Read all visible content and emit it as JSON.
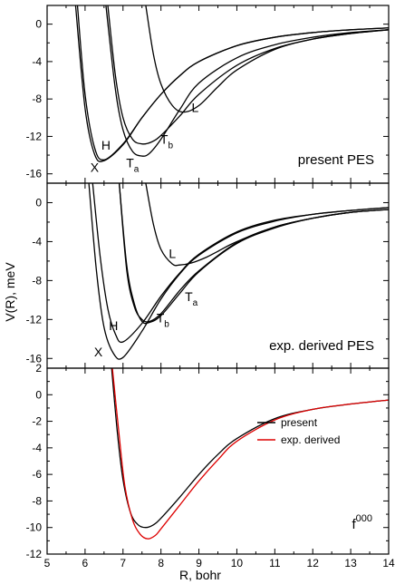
{
  "chart_data": [
    {
      "type": "line",
      "panel": "top",
      "label": "present PES",
      "ylabel": "V(R), meV",
      "xlabel": "R, bohr",
      "xlim": [
        5,
        14
      ],
      "ylim": [
        -17,
        2
      ],
      "yticks": [
        0,
        -4,
        -8,
        -12,
        -16
      ],
      "yticklabels": [
        "0",
        "-4",
        "-8",
        "-12",
        "-16"
      ],
      "series": [
        {
          "name": "X",
          "x": [
            5.75,
            6.0,
            6.25,
            6.5,
            7.0,
            7.5,
            8.0,
            8.5,
            9.0,
            10.0,
            11.0,
            12.0,
            13.0,
            14.0
          ],
          "y": [
            2.0,
            -9.0,
            -13.9,
            -14.6,
            -12.9,
            -10.0,
            -7.5,
            -5.5,
            -4.0,
            -2.3,
            -1.4,
            -0.9,
            -0.6,
            -0.4
          ]
        },
        {
          "name": "H",
          "x": [
            5.8,
            6.0,
            6.25,
            6.5,
            7.0,
            7.5,
            8.0,
            8.5,
            9.0,
            10.0,
            11.0,
            12.0,
            13.0,
            14.0
          ],
          "y": [
            2.0,
            -7.5,
            -13.2,
            -14.5,
            -12.8,
            -10.0,
            -7.5,
            -5.5,
            -4.0,
            -2.3,
            -1.4,
            -0.9,
            -0.6,
            -0.4
          ]
        },
        {
          "name": "T_a",
          "x": [
            6.55,
            6.8,
            7.0,
            7.25,
            7.5,
            7.7,
            8.0,
            8.5,
            9.0,
            10.0,
            11.0,
            12.0,
            13.0,
            14.0
          ],
          "y": [
            2.0,
            -7.0,
            -11.3,
            -13.6,
            -14.1,
            -13.8,
            -12.3,
            -9.1,
            -6.3,
            -3.6,
            -2.2,
            -1.4,
            -0.9,
            -0.6
          ]
        },
        {
          "name": "T_b",
          "x": [
            6.6,
            6.8,
            7.0,
            7.25,
            7.5,
            7.75,
            8.0,
            8.5,
            9.0,
            10.0,
            11.0,
            12.0,
            13.0,
            14.0
          ],
          "y": [
            2.0,
            -5.5,
            -10.0,
            -12.3,
            -12.8,
            -12.6,
            -11.9,
            -9.8,
            -7.5,
            -4.4,
            -2.6,
            -1.6,
            -1.0,
            -0.6
          ]
        },
        {
          "name": "L",
          "x": [
            7.6,
            7.8,
            8.0,
            8.3,
            8.6,
            9.0,
            9.5,
            10.0,
            11.0,
            12.0,
            13.0,
            14.0
          ],
          "y": [
            2.0,
            -3.2,
            -6.4,
            -8.7,
            -9.4,
            -8.7,
            -6.7,
            -4.9,
            -2.7,
            -1.6,
            -1.0,
            -0.6
          ]
        }
      ],
      "annotations": [
        {
          "text": "X",
          "x": 6.25,
          "y": -15.8
        },
        {
          "text": "H",
          "x": 6.55,
          "y": -13.4
        },
        {
          "text": "T",
          "sub": "a",
          "x": 7.25,
          "y": -15.3
        },
        {
          "text": "T",
          "sub": "b",
          "x": 8.15,
          "y": -12.8
        },
        {
          "text": "L",
          "x": 8.9,
          "y": -9.4
        }
      ]
    },
    {
      "type": "line",
      "panel": "middle",
      "label": "exp. derived PES",
      "ylabel": "",
      "xlabel": "R, bohr",
      "xlim": [
        5,
        14
      ],
      "ylim": [
        -17,
        2
      ],
      "yticks": [
        0,
        -4,
        -8,
        -12,
        -16
      ],
      "yticklabels": [
        "0",
        "-4",
        "-8",
        "-12",
        "-16"
      ],
      "series": [
        {
          "name": "X",
          "x": [
            6.1,
            6.3,
            6.5,
            6.75,
            7.0,
            7.5,
            8.0,
            8.5,
            9.0,
            10.0,
            11.0,
            12.0,
            13.0,
            14.0
          ],
          "y": [
            2.0,
            -7.0,
            -12.8,
            -15.5,
            -15.9,
            -13.2,
            -9.9,
            -7.3,
            -5.4,
            -3.1,
            -1.9,
            -1.2,
            -0.8,
            -0.5
          ]
        },
        {
          "name": "H",
          "x": [
            6.2,
            6.4,
            6.6,
            6.8,
            7.0,
            7.5,
            8.0,
            8.5,
            9.0,
            10.0,
            11.0,
            12.0,
            13.0,
            14.0
          ],
          "y": [
            2.0,
            -5.6,
            -10.9,
            -13.5,
            -14.3,
            -12.4,
            -9.6,
            -7.2,
            -5.3,
            -3.0,
            -1.8,
            -1.2,
            -0.8,
            -0.5
          ]
        },
        {
          "name": "T_a",
          "x": [
            6.9,
            7.1,
            7.3,
            7.5,
            7.7,
            8.0,
            8.5,
            9.0,
            10.0,
            11.0,
            12.0,
            13.0,
            14.0
          ],
          "y": [
            2.0,
            -7.0,
            -10.7,
            -12.0,
            -12.2,
            -11.4,
            -9.0,
            -7.0,
            -4.1,
            -2.5,
            -1.6,
            -1.0,
            -0.7
          ]
        },
        {
          "name": "T_b",
          "x": [
            6.9,
            7.1,
            7.3,
            7.5,
            7.7,
            8.0,
            8.5,
            9.0,
            10.0,
            11.0,
            12.0,
            13.0,
            14.0
          ],
          "y": [
            2.0,
            -6.5,
            -10.4,
            -12.2,
            -12.3,
            -11.6,
            -9.3,
            -7.1,
            -4.2,
            -2.6,
            -1.6,
            -1.0,
            -0.7
          ]
        },
        {
          "name": "L",
          "x": [
            7.6,
            7.8,
            8.0,
            8.3,
            8.5,
            8.8,
            9.2,
            9.5,
            10.0,
            11.0,
            12.0,
            13.0,
            14.0
          ],
          "y": [
            2.0,
            -2.2,
            -4.8,
            -6.3,
            -6.4,
            -6.2,
            -5.6,
            -5.0,
            -4.0,
            -2.5,
            -1.6,
            -1.0,
            -0.7
          ]
        }
      ],
      "annotations": [
        {
          "text": "X",
          "x": 6.35,
          "y": -15.8
        },
        {
          "text": "H",
          "x": 6.75,
          "y": -13.1
        },
        {
          "text": "T",
          "sub": "a",
          "x": 8.8,
          "y": -10.1
        },
        {
          "text": "T",
          "sub": "b",
          "x": 8.05,
          "y": -12.3
        },
        {
          "text": "L",
          "x": 8.3,
          "y": -5.7
        }
      ]
    },
    {
      "type": "line",
      "panel": "bottom",
      "label": "f",
      "label_sup": "000",
      "ylabel": "",
      "xlabel": "R, bohr",
      "xlim": [
        5,
        14
      ],
      "ylim": [
        -12,
        2
      ],
      "yticks": [
        2,
        0,
        -2,
        -4,
        -6,
        -8,
        -10,
        -12
      ],
      "yticklabels": [
        "2",
        "0",
        "-2",
        "-4",
        "-6",
        "-8",
        "-10",
        "-12"
      ],
      "legend": "right",
      "series": [
        {
          "name": "present",
          "x": [
            6.7,
            6.85,
            7.0,
            7.2,
            7.4,
            7.6,
            7.8,
            8.0,
            8.5,
            9.0,
            9.5,
            10.0,
            11.0,
            12.0,
            13.0,
            14.0
          ],
          "y": [
            2.0,
            -2.8,
            -6.4,
            -8.9,
            -9.8,
            -10.0,
            -9.8,
            -9.3,
            -7.7,
            -6.0,
            -4.5,
            -3.3,
            -1.8,
            -1.1,
            -0.7,
            -0.4
          ]
        },
        {
          "name": "exp. derived",
          "x": [
            6.72,
            6.9,
            7.05,
            7.25,
            7.45,
            7.65,
            7.85,
            8.0,
            8.5,
            9.0,
            9.5,
            10.0,
            11.0,
            12.0,
            13.0,
            14.0
          ],
          "y": [
            2.0,
            -3.1,
            -6.9,
            -9.4,
            -10.5,
            -10.85,
            -10.6,
            -10.1,
            -8.3,
            -6.5,
            -4.9,
            -3.5,
            -1.9,
            -1.1,
            -0.7,
            -0.4
          ]
        }
      ]
    }
  ],
  "x_ticks": [
    5,
    6,
    7,
    8,
    9,
    10,
    11,
    12,
    13,
    14
  ],
  "x_ticklabels": [
    "5",
    "6",
    "7",
    "8",
    "9",
    "10",
    "11",
    "12",
    "13",
    "14"
  ],
  "ylabel": "V(R), meV",
  "xlabel": "R, bohr",
  "colors": {
    "present": "#000000",
    "exp_derived": "#dd0000",
    "axes": "#000000"
  }
}
